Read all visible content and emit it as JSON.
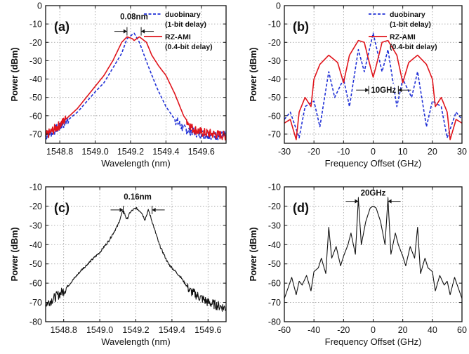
{
  "chart_data": [
    {
      "panel": "(a)",
      "type": "line",
      "xlabel": "Wavelength (nm)",
      "ylabel": "Power (dBm)",
      "xlim": [
        1548.72,
        1549.74
      ],
      "ylim": [
        -75,
        0
      ],
      "xticks": [
        1548.8,
        1549.0,
        1549.2,
        1549.4,
        1549.6
      ],
      "xtick_labels": [
        "1548.8",
        "1549.0",
        "1549.2",
        "1549.4",
        "1549.6"
      ],
      "yticks": [
        0,
        -10,
        -20,
        -30,
        -40,
        -50,
        -60,
        -70
      ],
      "grid": true,
      "legend_position": "top-right",
      "annotation": "0.08nm",
      "series": [
        {
          "name": "duobinary (1-bit delay)",
          "name_line1": "duobinary",
          "name_line2": "(1-bit delay)",
          "color": "#1f2fd6",
          "dash": "dashed",
          "x": [
            1548.72,
            1548.8,
            1548.9,
            1549.0,
            1549.05,
            1549.1,
            1549.15,
            1549.18,
            1549.22,
            1549.25,
            1549.3,
            1549.35,
            1549.4,
            1549.45,
            1549.5,
            1549.6,
            1549.74
          ],
          "y": [
            -71,
            -66,
            -58,
            -47,
            -42,
            -34,
            -26,
            -18,
            -15,
            -20,
            -33,
            -45,
            -55,
            -62,
            -67,
            -70,
            -71
          ]
        },
        {
          "name": "RZ-AMI (0.4-bit delay)",
          "name_line1": "RZ-AMI",
          "name_line2": "(0.4-bit delay)",
          "color": "#e0141b",
          "dash": "solid",
          "x": [
            1548.72,
            1548.8,
            1548.9,
            1549.0,
            1549.05,
            1549.1,
            1549.15,
            1549.18,
            1549.21,
            1549.22,
            1549.25,
            1549.29,
            1549.32,
            1549.36,
            1549.4,
            1549.45,
            1549.5,
            1549.55,
            1549.6,
            1549.74
          ],
          "y": [
            -71,
            -65,
            -56,
            -44,
            -38,
            -30,
            -20,
            -17,
            -18,
            -19,
            -17,
            -20,
            -27,
            -33,
            -38,
            -48,
            -60,
            -67,
            -69,
            -71
          ]
        }
      ]
    },
    {
      "panel": "(b)",
      "type": "line",
      "xlabel": "Frequency Offset (GHz)",
      "ylabel": "Power (dBm)",
      "xlim": [
        -30,
        30
      ],
      "ylim": [
        -75,
        0
      ],
      "xticks": [
        -30,
        -20,
        -10,
        0,
        10,
        20,
        30
      ],
      "xtick_labels": [
        "-30",
        "-20",
        "-10",
        "0",
        "10",
        "20",
        "30"
      ],
      "yticks": [
        0,
        -10,
        -20,
        -30,
        -40,
        -50,
        -60,
        -70
      ],
      "grid": true,
      "legend_position": "top-right",
      "annotation": "10GHz",
      "series": [
        {
          "name": "duobinary (1-bit delay)",
          "name_line1": "duobinary",
          "name_line2": "(1-bit delay)",
          "color": "#1f2fd6",
          "dash": "dashed",
          "x": [
            -30,
            -28,
            -25,
            -23,
            -20,
            -18,
            -15,
            -13,
            -10,
            -8,
            -5,
            -3,
            0,
            3,
            5,
            8,
            10,
            13,
            15,
            18,
            20,
            23,
            25,
            28,
            30
          ],
          "y": [
            -62,
            -58,
            -72,
            -55,
            -52,
            -66,
            -36,
            -50,
            -40,
            -55,
            -24,
            -36,
            -15,
            -36,
            -24,
            -55,
            -40,
            -50,
            -36,
            -66,
            -52,
            -55,
            -72,
            -58,
            -62
          ]
        },
        {
          "name": "RZ-AMI (0.4-bit delay)",
          "name_line1": "RZ-AMI",
          "name_line2": "(0.4-bit delay)",
          "color": "#e0141b",
          "dash": "solid",
          "x": [
            -30,
            -28,
            -26,
            -25,
            -23,
            -21,
            -20,
            -18,
            -15,
            -12,
            -10,
            -8,
            -5,
            -3,
            -1,
            0,
            1,
            3,
            5,
            8,
            10,
            12,
            15,
            18,
            20,
            21,
            23,
            25,
            26,
            28,
            30
          ],
          "y": [
            -64,
            -62,
            -73,
            -58,
            -50,
            -55,
            -40,
            -32,
            -27,
            -31,
            -42,
            -27,
            -19,
            -20,
            -33,
            -39,
            -33,
            -20,
            -19,
            -27,
            -42,
            -31,
            -27,
            -32,
            -40,
            -55,
            -50,
            -58,
            -73,
            -62,
            -64
          ]
        }
      ]
    },
    {
      "panel": "(c)",
      "type": "line",
      "xlabel": "Wavelength (nm)",
      "ylabel": "Power (dBm)",
      "xlim": [
        1548.7,
        1549.7
      ],
      "ylim": [
        -80,
        -10
      ],
      "xticks": [
        1548.8,
        1549.0,
        1549.2,
        1549.4,
        1549.6
      ],
      "xtick_labels": [
        "1548.8",
        "1549.0",
        "1549.2",
        "1549.4",
        "1549.6"
      ],
      "yticks": [
        -10,
        -20,
        -30,
        -40,
        -50,
        -60,
        -70,
        -80
      ],
      "grid": true,
      "annotation": "0.16nm",
      "series": [
        {
          "color": "#111111",
          "dash": "solid",
          "x": [
            1548.7,
            1548.8,
            1548.9,
            1549.0,
            1549.05,
            1549.1,
            1549.13,
            1549.15,
            1549.17,
            1549.2,
            1549.23,
            1549.25,
            1549.27,
            1549.29,
            1549.33,
            1549.38,
            1549.45,
            1549.5,
            1549.6,
            1549.7
          ],
          "y": [
            -71,
            -64,
            -53,
            -44,
            -38,
            -30,
            -22,
            -27,
            -23,
            -21,
            -23,
            -27,
            -22,
            -28,
            -40,
            -50,
            -57,
            -64,
            -70,
            -73
          ]
        }
      ]
    },
    {
      "panel": "(d)",
      "type": "line",
      "xlabel": "Frequency Offset (GHz)",
      "ylabel": "Power (dBm)",
      "xlim": [
        -60,
        60
      ],
      "ylim": [
        -80,
        -10
      ],
      "xticks": [
        -60,
        -40,
        -20,
        0,
        20,
        40,
        60
      ],
      "xtick_labels": [
        "-60",
        "-40",
        "-20",
        "0",
        "20",
        "40",
        "60"
      ],
      "yticks": [
        -10,
        -20,
        -30,
        -40,
        -50,
        -60,
        -70,
        -80
      ],
      "grid": true,
      "annotation": "20GHz",
      "series": [
        {
          "color": "#111111",
          "dash": "solid",
          "x": [
            -60,
            -55,
            -52,
            -50,
            -48,
            -45,
            -42,
            -40,
            -37,
            -35,
            -32,
            -30,
            -28,
            -25,
            -22,
            -20,
            -17,
            -15,
            -12,
            -10,
            -8,
            -5,
            -2,
            0,
            2,
            5,
            8,
            10,
            12,
            15,
            17,
            20,
            22,
            25,
            28,
            30,
            32,
            35,
            37,
            40,
            42,
            45,
            48,
            50,
            52,
            55,
            60
          ],
          "y": [
            -68,
            -57,
            -66,
            -59,
            -61,
            -56,
            -64,
            -54,
            -52,
            -47,
            -55,
            -31,
            -47,
            -41,
            -51,
            -46,
            -40,
            -34,
            -45,
            -16,
            -40,
            -28,
            -21,
            -20,
            -21,
            -28,
            -40,
            -16,
            -45,
            -34,
            -40,
            -46,
            -51,
            -41,
            -47,
            -31,
            -55,
            -47,
            -52,
            -54,
            -64,
            -56,
            -61,
            -59,
            -66,
            -57,
            -68
          ]
        }
      ]
    }
  ]
}
